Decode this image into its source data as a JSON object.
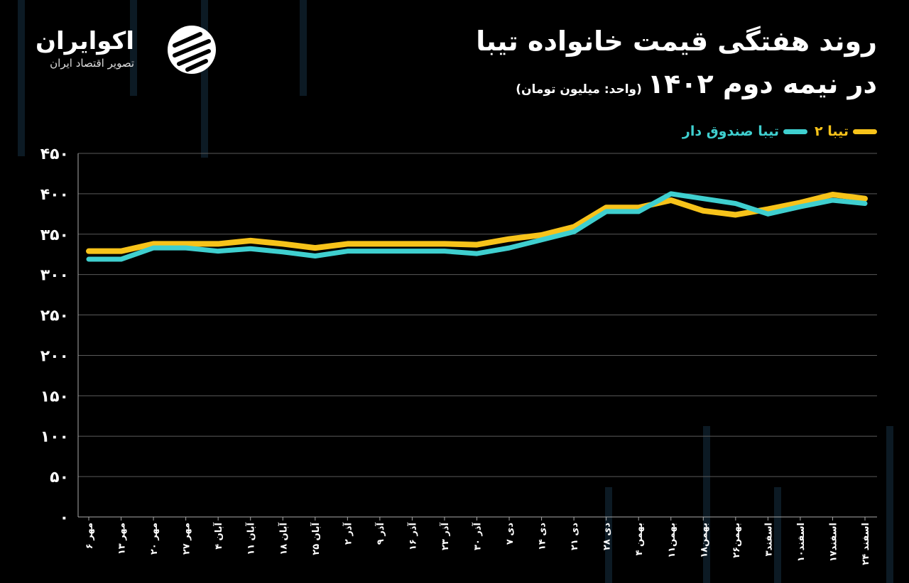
{
  "brand": {
    "name": "اکوایران",
    "tagline": "تصویر اقتصاد ایران"
  },
  "chart_data": {
    "type": "line",
    "title": "روند هفتگی قیمت خانواده تیبا",
    "title_line2": "در نیمه دوم ۱۴۰۲",
    "subtitle": "(واحد: میلیون تومان)",
    "categories": [
      "۶ مهر",
      "۱۳ مهر",
      "۲۰ مهر",
      "۲۷ مهر",
      "۴ آبان",
      "۱۱ آبان",
      "۱۸ آبان",
      "۲۵ آبان",
      "۲ آذر",
      "۹ آذر",
      "۱۶ آذر",
      "۲۳ آذر",
      "۳۰ آذر",
      "۷ دی",
      "۱۴ دی",
      "۲۱ دی",
      "۲۸ دی",
      "۴ بهمن",
      "۱۱بهمن",
      "۱۸بهمن",
      "۲۶بهمن",
      "۳اسفند",
      "۱۰اسفند",
      "۱۷اسفند",
      "۲۴ اسفند"
    ],
    "series": [
      {
        "name": "تیبا ۲",
        "color": "#f7c31a",
        "values": [
          329,
          329,
          338,
          338,
          338,
          342,
          338,
          333,
          338,
          338,
          338,
          338,
          337,
          344,
          349,
          359,
          383,
          383,
          392,
          379,
          374,
          381,
          389,
          399,
          394
        ]
      },
      {
        "name": "تیبا صندوق دار",
        "color": "#3fcfcf",
        "values": [
          319,
          319,
          333,
          333,
          329,
          332,
          328,
          323,
          329,
          329,
          329,
          329,
          326,
          333,
          343,
          353,
          378,
          378,
          400,
          394,
          388,
          375,
          384,
          392,
          388
        ]
      }
    ],
    "ylim": [
      0,
      450
    ],
    "yticks": [
      {
        "value": 0,
        "label": "۰"
      },
      {
        "value": 50,
        "label": "۵۰"
      },
      {
        "value": 100,
        "label": "۱۰۰"
      },
      {
        "value": 150,
        "label": "۱۵۰"
      },
      {
        "value": 200,
        "label": "۲۰۰"
      },
      {
        "value": 250,
        "label": "۲۵۰"
      },
      {
        "value": 300,
        "label": "۳۰۰"
      },
      {
        "value": 350,
        "label": "۳۵۰"
      },
      {
        "value": 400,
        "label": "۴۰۰"
      },
      {
        "value": 450,
        "label": "۴۵۰"
      }
    ],
    "grid": true
  }
}
